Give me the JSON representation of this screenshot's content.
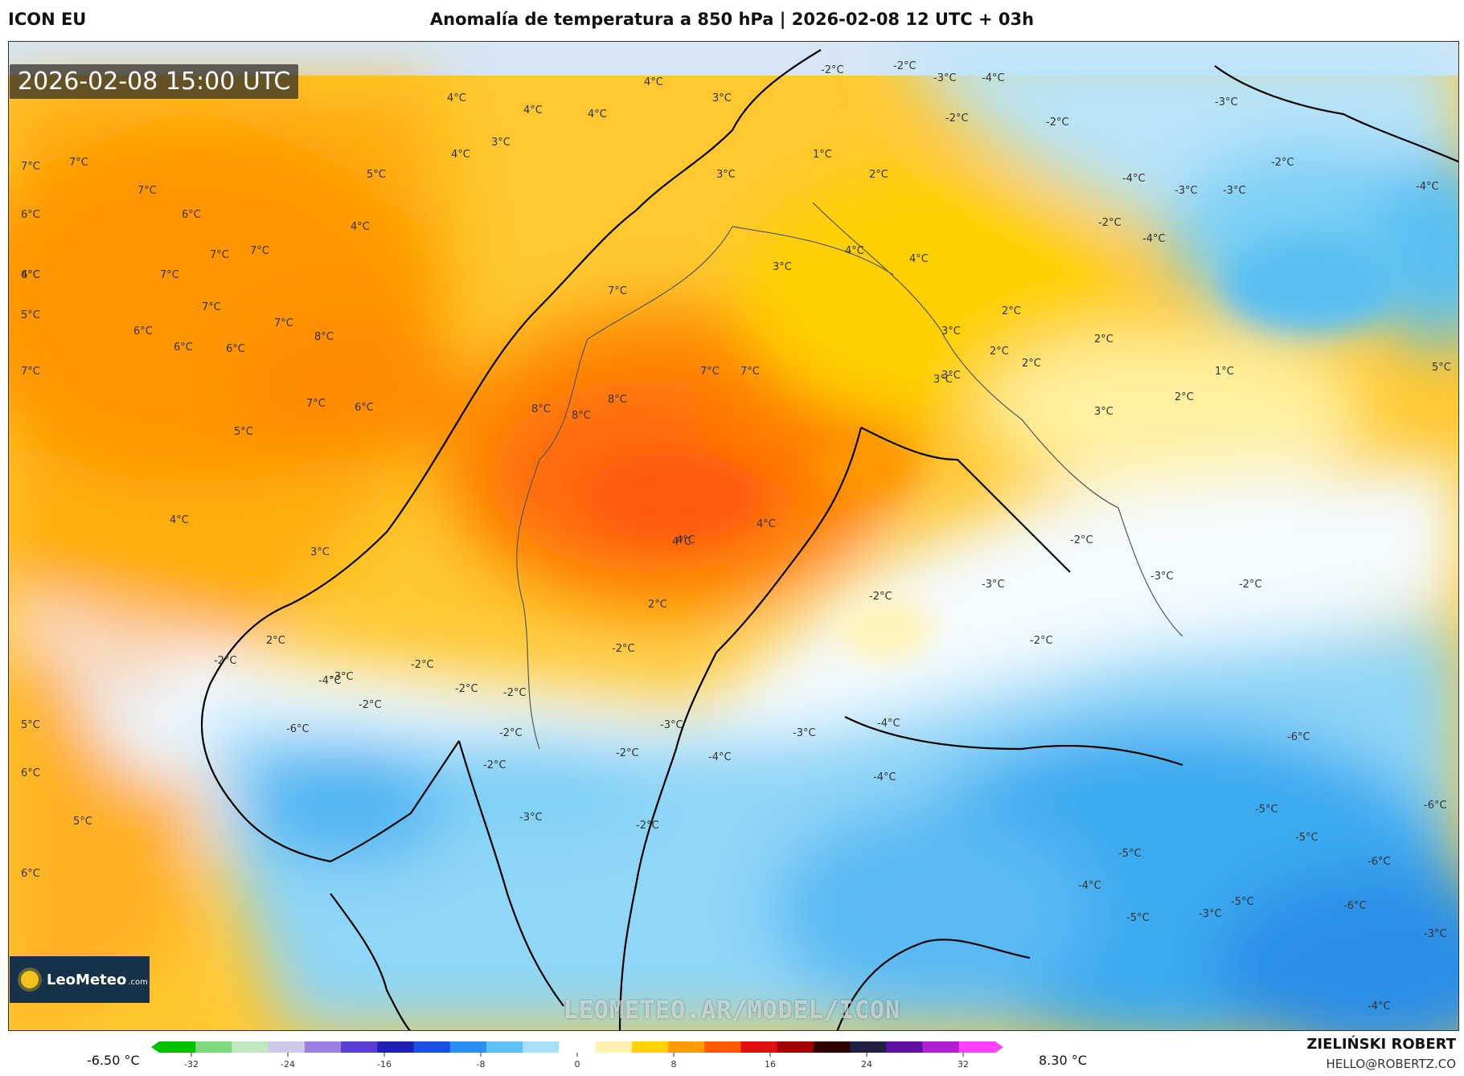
{
  "header": {
    "model": "ICON EU",
    "title": "Anomalía de temperatura a 850 hPa | 2026-02-08 12 UTC + 03h"
  },
  "map": {
    "valid_time": "2026-02-08 15:00 UTC",
    "watermark": "LEOMETEO.AR/MODEL/ICON",
    "labels": [
      {
        "text": "4°C"
      },
      {
        "text": "4°C"
      },
      {
        "text": "4°C"
      },
      {
        "text": "4°C"
      },
      {
        "text": "3°C"
      },
      {
        "text": "3°C"
      },
      {
        "text": "4°C"
      },
      {
        "text": "5°C"
      },
      {
        "text": "4°C"
      },
      {
        "text": "7°C"
      },
      {
        "text": "7°C"
      },
      {
        "text": "7°C"
      },
      {
        "text": "6°C"
      },
      {
        "text": "7°C"
      },
      {
        "text": "6°C"
      },
      {
        "text": "7°C"
      },
      {
        "text": "7°C"
      },
      {
        "text": "7°C"
      },
      {
        "text": "6°C"
      },
      {
        "text": "7°C"
      },
      {
        "text": "7°C"
      },
      {
        "text": "6°C"
      },
      {
        "text": "8°C"
      },
      {
        "text": "6°C"
      },
      {
        "text": "6°C"
      },
      {
        "text": "7°C"
      },
      {
        "text": "6°C"
      },
      {
        "text": "5°C"
      },
      {
        "text": "5°C"
      },
      {
        "text": "4°C"
      },
      {
        "text": "7°C"
      },
      {
        "text": "7°C"
      },
      {
        "text": "7°C"
      },
      {
        "text": "8°C"
      },
      {
        "text": "8°C"
      },
      {
        "text": "8°C"
      },
      {
        "text": "3°C"
      },
      {
        "text": "4°C"
      },
      {
        "text": "4°C"
      },
      {
        "text": "3°C"
      },
      {
        "text": "1°C"
      },
      {
        "text": "2°C"
      },
      {
        "text": "4°C"
      },
      {
        "text": "3°C"
      },
      {
        "text": "3°C"
      },
      {
        "text": "2°C"
      },
      {
        "text": "2°C"
      },
      {
        "text": "3°C"
      },
      {
        "text": "3°C"
      },
      {
        "text": "2°C"
      },
      {
        "text": "1°C"
      },
      {
        "text": "2°C"
      },
      {
        "text": "2°C"
      },
      {
        "text": "4°C"
      },
      {
        "text": "4°C"
      },
      {
        "text": "4°C"
      },
      {
        "text": "3°C"
      },
      {
        "text": "2°C"
      },
      {
        "text": "2°C"
      },
      {
        "text": "-2°C"
      },
      {
        "text": "-2°C"
      },
      {
        "text": "-3°C"
      },
      {
        "text": "-4°C"
      },
      {
        "text": "-2°C"
      },
      {
        "text": "-2°C"
      },
      {
        "text": "-2°C"
      },
      {
        "text": "-3°C"
      },
      {
        "text": "-3°C"
      },
      {
        "text": "-2°C"
      },
      {
        "text": "-4°C"
      },
      {
        "text": "-4°C"
      },
      {
        "text": "-2°C"
      },
      {
        "text": "-2°C"
      },
      {
        "text": "-2°C"
      },
      {
        "text": "-2°C"
      },
      {
        "text": "-3°C"
      },
      {
        "text": "-3°C"
      },
      {
        "text": "-3°C"
      },
      {
        "text": "-4°C"
      },
      {
        "text": "-3°C"
      },
      {
        "text": "-3°C"
      },
      {
        "text": "-2°C"
      },
      {
        "text": "-6°C"
      },
      {
        "text": "-4°C"
      },
      {
        "text": "-2°C"
      },
      {
        "text": "-2°C"
      },
      {
        "text": "-2°C"
      },
      {
        "text": "-2°C"
      },
      {
        "text": "-2°C"
      },
      {
        "text": "-2°C"
      },
      {
        "text": "-2°C"
      },
      {
        "text": "-3°C"
      },
      {
        "text": "-3°C"
      },
      {
        "text": "-2°C"
      },
      {
        "text": "-3°C"
      },
      {
        "text": "-4°C"
      },
      {
        "text": "-4°C"
      },
      {
        "text": "-4°C"
      },
      {
        "text": "-5°C"
      },
      {
        "text": "-5°C"
      },
      {
        "text": "-4°C"
      },
      {
        "text": "-6°C"
      },
      {
        "text": "-6°C"
      },
      {
        "text": "-5°C"
      },
      {
        "text": "-5°C"
      },
      {
        "text": "-6°C"
      },
      {
        "text": "-5°C"
      },
      {
        "text": "-6°C"
      },
      {
        "text": "-4°C"
      },
      {
        "text": "-3°C"
      },
      {
        "text": "-2°C"
      },
      {
        "text": "5°C"
      },
      {
        "text": "5°C"
      },
      {
        "text": "6°C"
      },
      {
        "text": "5°C"
      },
      {
        "text": "6°C"
      }
    ]
  },
  "logo": {
    "name": "LeoMeteo",
    "suffix": ".com"
  },
  "colorbar": {
    "min_label": "-6.50 °C",
    "max_label": "8.30 °C",
    "ticks": [
      "-32",
      "-24",
      "-16",
      "-8",
      "0",
      "8",
      "16",
      "24",
      "32"
    ],
    "colors": [
      "#00c000",
      "#7fd97f",
      "#c0e8c0",
      "#d0c8e8",
      "#9a7fe0",
      "#5a3fd0",
      "#2020b0",
      "#1a4fe0",
      "#2a90f0",
      "#5fc0f5",
      "#a8e0fa",
      "#ffffff",
      "#fff2b0",
      "#ffd400",
      "#ff9a00",
      "#ff5a00",
      "#e01010",
      "#a00000",
      "#300000",
      "#202040",
      "#6010a0",
      "#b020d0",
      "#ff40ff"
    ]
  },
  "author": {
    "name": "ZIELIŃSKI ROBERT",
    "email": "HELLO@ROBERTZ.CO"
  }
}
